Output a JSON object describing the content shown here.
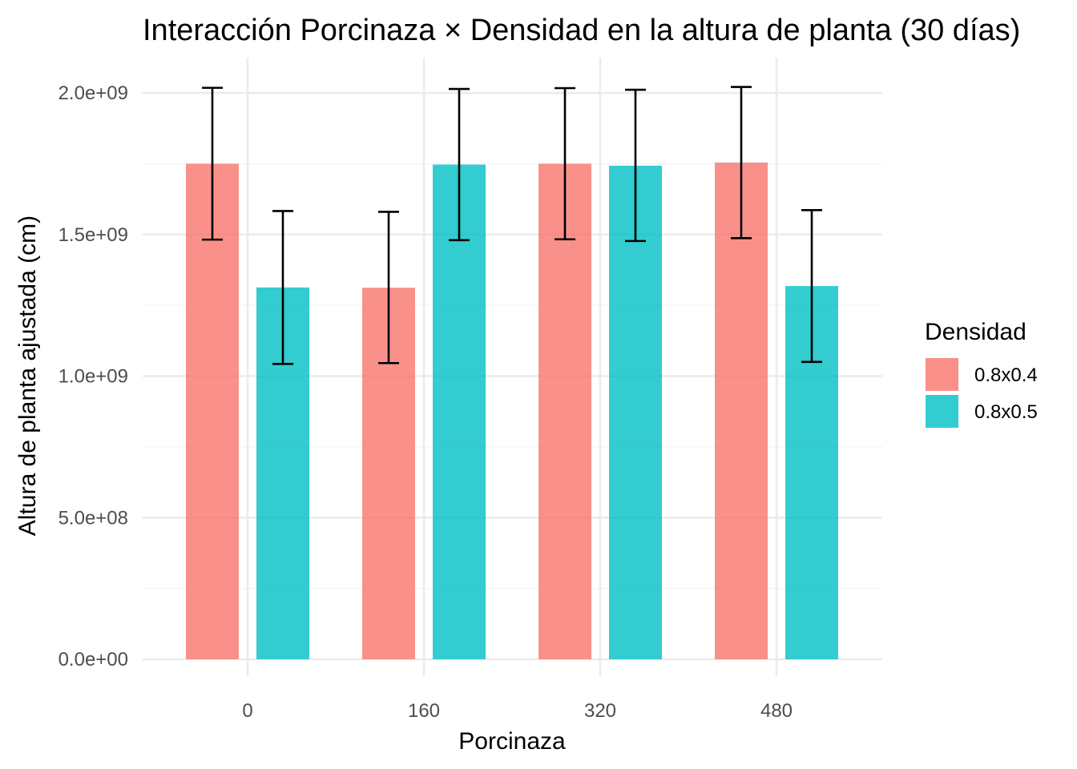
{
  "chart_data": {
    "type": "bar",
    "title": "Interacción Porcinaza × Densidad en la altura de planta (30 días)",
    "xlabel": "Porcinaza",
    "ylabel": "Altura de planta ajustada (cm)",
    "categories": [
      "0",
      "160",
      "320",
      "480"
    ],
    "ylim": [
      0,
      2100000000
    ],
    "yticks": [
      0,
      500000000,
      1000000000,
      1500000000,
      2000000000
    ],
    "ytick_labels": [
      "0.0e+00",
      "5.0e+08",
      "1.0e+09",
      "1.5e+09",
      "2.0e+09"
    ],
    "grid": true,
    "legend": {
      "title": "Densidad",
      "position": "right"
    },
    "series": [
      {
        "name": "0.8x0.4",
        "color": "#F8766D",
        "values": [
          1750000000,
          1312000000,
          1750000000,
          1754000000
        ],
        "error_low": [
          1482000000,
          1046000000,
          1483000000,
          1487000000
        ],
        "error_high": [
          2018000000,
          1580000000,
          2017000000,
          2021000000
        ]
      },
      {
        "name": "0.8x0.5",
        "color": "#00BFC4",
        "values": [
          1313000000,
          1747000000,
          1743000000,
          1318000000
        ],
        "error_low": [
          1043000000,
          1480000000,
          1477000000,
          1050000000
        ],
        "error_high": [
          1583000000,
          2014000000,
          2011000000,
          1586000000
        ]
      }
    ]
  }
}
